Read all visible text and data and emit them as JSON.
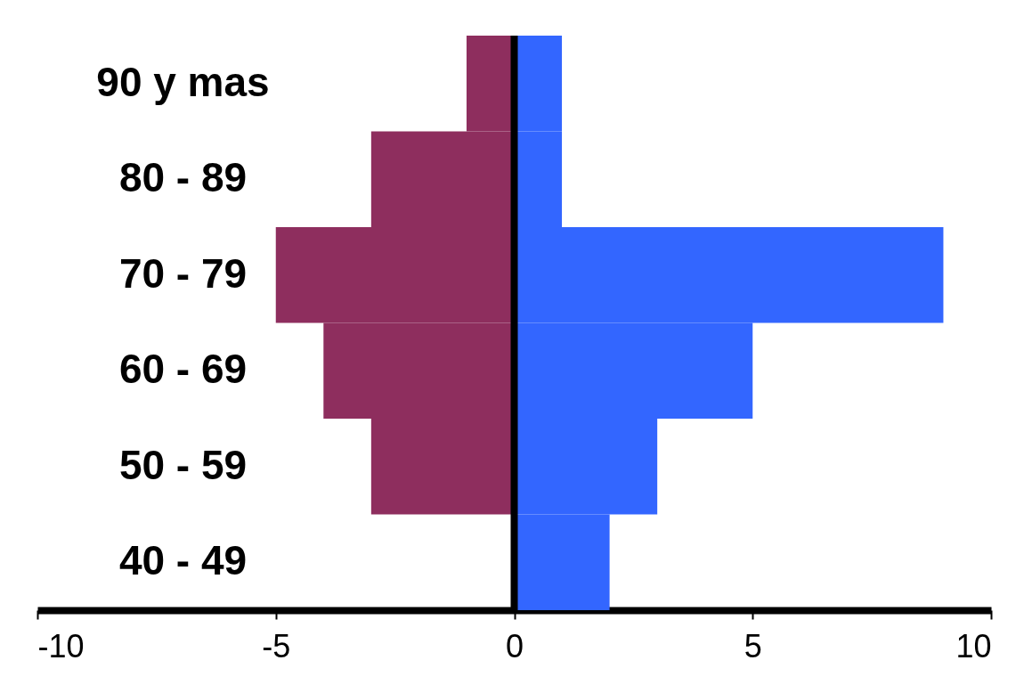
{
  "chart_data": {
    "type": "bar",
    "orientation": "horizontal",
    "categories": [
      "90 y mas",
      "80 - 89",
      "70 - 79",
      "60 - 69",
      "50 - 59",
      "40 - 49"
    ],
    "series": [
      {
        "color": "#8e2e5e",
        "values": [
          -1,
          -3,
          -5,
          -4,
          -3,
          0
        ]
      },
      {
        "color": "#3366ff",
        "values": [
          1,
          1,
          9,
          5,
          3,
          2
        ]
      }
    ],
    "xlim": [
      -10,
      10
    ],
    "xticks": [
      -10,
      -5,
      0,
      5,
      10
    ],
    "grid": false,
    "stacked": true,
    "legend": false,
    "ref_lines": [
      {
        "axis": "x",
        "value": 0,
        "color": "#000000"
      }
    ]
  }
}
